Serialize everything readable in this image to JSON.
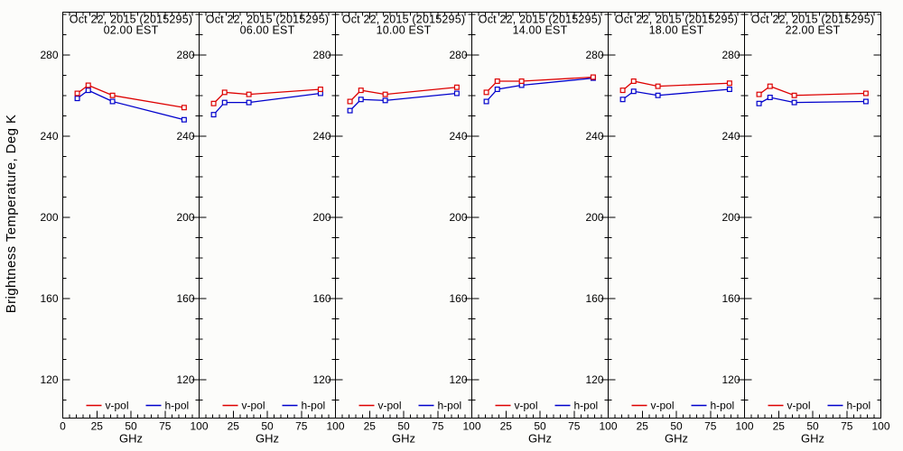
{
  "chart_data": {
    "type": "line",
    "ylabel": "Brightness Temperature, Deg K",
    "xlabel": "GHz",
    "xlim": [
      0,
      100
    ],
    "ylim": [
      101,
      301
    ],
    "x_major_ticks": [
      0,
      25,
      50,
      75,
      100
    ],
    "x_minor_step": 5,
    "y_major_ticks": [
      120,
      160,
      200,
      240,
      280
    ],
    "y_minor_step": 10,
    "grid": false,
    "legend_position": "inside-bottom",
    "marker": "open-square",
    "x": [
      10.65,
      18.7,
      36.5,
      89
    ],
    "colors": {
      "v_pol": "#dd0000",
      "h_pol": "#0000cc",
      "frame": "#000000",
      "background": "#fcfcfa"
    },
    "legend": [
      {
        "label": "v-pol",
        "color": "#dd0000"
      },
      {
        "label": "h-pol",
        "color": "#0000cc"
      }
    ],
    "panels": [
      {
        "title": "Oct 22, 2015 (2015295)",
        "subtitle": "02.00 EST",
        "series": [
          {
            "name": "v-pol",
            "color": "#dd0000",
            "values": [
              261,
              265,
              260,
              254
            ]
          },
          {
            "name": "h-pol",
            "color": "#0000cc",
            "values": [
              258.5,
              262.5,
              257,
              248
            ]
          }
        ]
      },
      {
        "title": "Oct 22, 2015 (2015295)",
        "subtitle": "06.00 EST",
        "series": [
          {
            "name": "v-pol",
            "color": "#dd0000",
            "values": [
              256,
              261.5,
              260.5,
              263
            ]
          },
          {
            "name": "h-pol",
            "color": "#0000cc",
            "values": [
              250.5,
              256.5,
              256.5,
              261
            ]
          }
        ]
      },
      {
        "title": "Oct 22, 2015 (2015295)",
        "subtitle": "10.00 EST",
        "series": [
          {
            "name": "v-pol",
            "color": "#dd0000",
            "values": [
              257,
              262.5,
              260.5,
              264
            ]
          },
          {
            "name": "h-pol",
            "color": "#0000cc",
            "values": [
              252.5,
              258,
              257.5,
              261
            ]
          }
        ]
      },
      {
        "title": "Oct 22, 2015 (2015295)",
        "subtitle": "14.00 EST",
        "series": [
          {
            "name": "v-pol",
            "color": "#dd0000",
            "values": [
              261.5,
              267,
              267,
              269
            ]
          },
          {
            "name": "h-pol",
            "color": "#0000cc",
            "values": [
              257,
              263,
              265,
              268.5
            ]
          }
        ]
      },
      {
        "title": "Oct 22, 2015 (2015295)",
        "subtitle": "18.00 EST",
        "series": [
          {
            "name": "v-pol",
            "color": "#dd0000",
            "values": [
              262.5,
              267,
              264.5,
              266
            ]
          },
          {
            "name": "h-pol",
            "color": "#0000cc",
            "values": [
              258,
              262,
              260,
              263
            ]
          }
        ]
      },
      {
        "title": "Oct 22, 2015 (2015295)",
        "subtitle": "22.00 EST",
        "series": [
          {
            "name": "v-pol",
            "color": "#dd0000",
            "values": [
              260.5,
              264.5,
              260,
              261
            ]
          },
          {
            "name": "h-pol",
            "color": "#0000cc",
            "values": [
              256,
              259,
              256.5,
              257
            ]
          }
        ]
      }
    ]
  }
}
